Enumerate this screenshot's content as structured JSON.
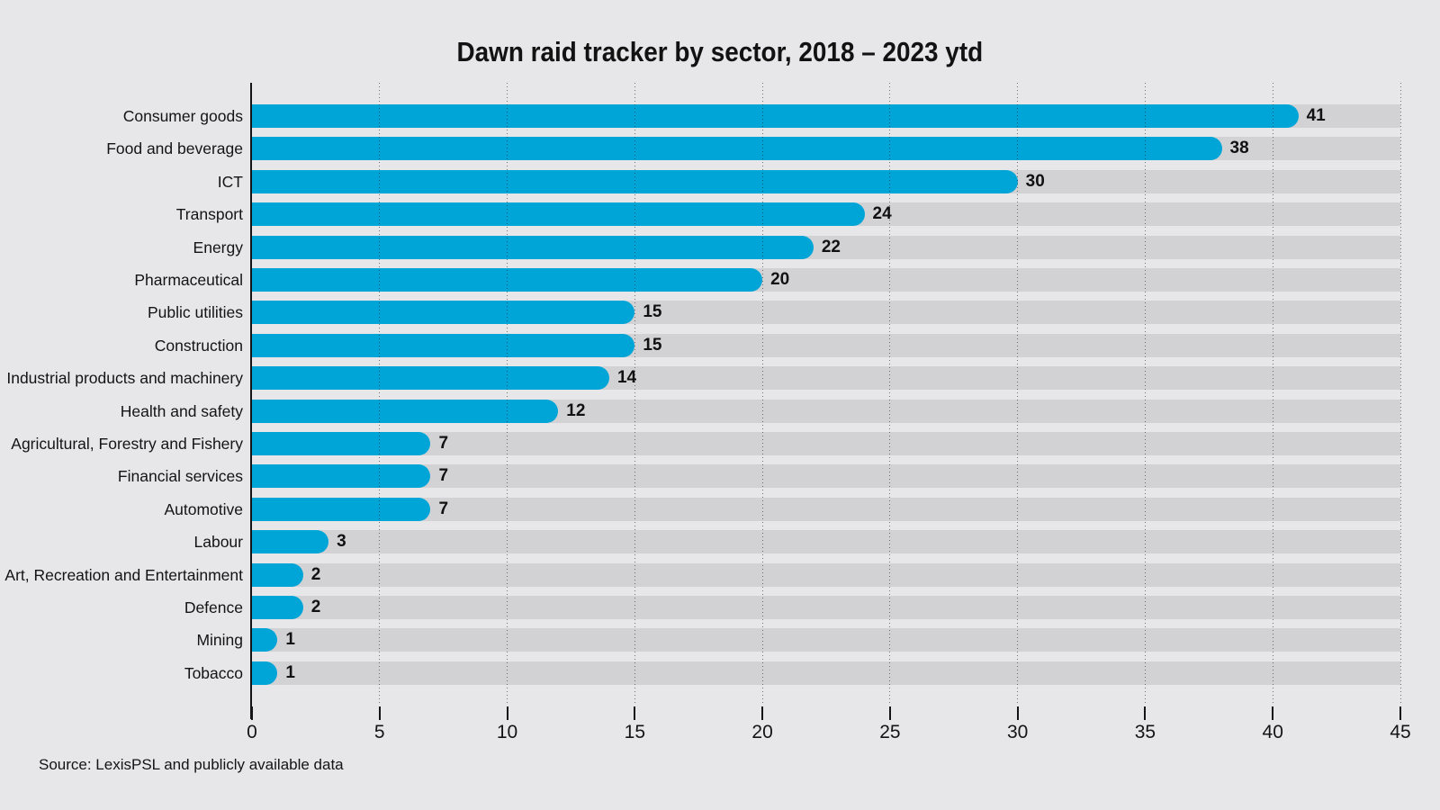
{
  "chart_data": {
    "type": "bar",
    "orientation": "horizontal",
    "title": "Dawn raid tracker by sector, 2018 – 2023 ytd",
    "source": "Source: LexisPSL and publicly available data",
    "categories": [
      "Consumer goods",
      "Food and beverage",
      "ICT",
      "Transport",
      "Energy",
      "Pharmaceutical",
      "Public utilities",
      "Construction",
      "Industrial products and machinery",
      "Health and safety",
      "Agricultural, Forestry and Fishery",
      "Financial services",
      "Automotive",
      "Labour",
      "Art, Recreation and Entertainment",
      "Defence",
      "Mining",
      "Tobacco"
    ],
    "values": [
      41,
      38,
      30,
      24,
      22,
      20,
      15,
      15,
      14,
      12,
      7,
      7,
      7,
      3,
      2,
      2,
      1,
      1
    ],
    "xlim": [
      0,
      45
    ],
    "xticks": [
      0,
      5,
      10,
      15,
      20,
      25,
      30,
      35,
      40,
      45
    ],
    "grid": "dotted vertical gridlines every 5 units, over tracks and bars",
    "legend": "none",
    "colors": {
      "bar": "#00A5D8",
      "track": "#D2D2D4",
      "background": "#E7E7E9",
      "text": "#141414"
    }
  }
}
